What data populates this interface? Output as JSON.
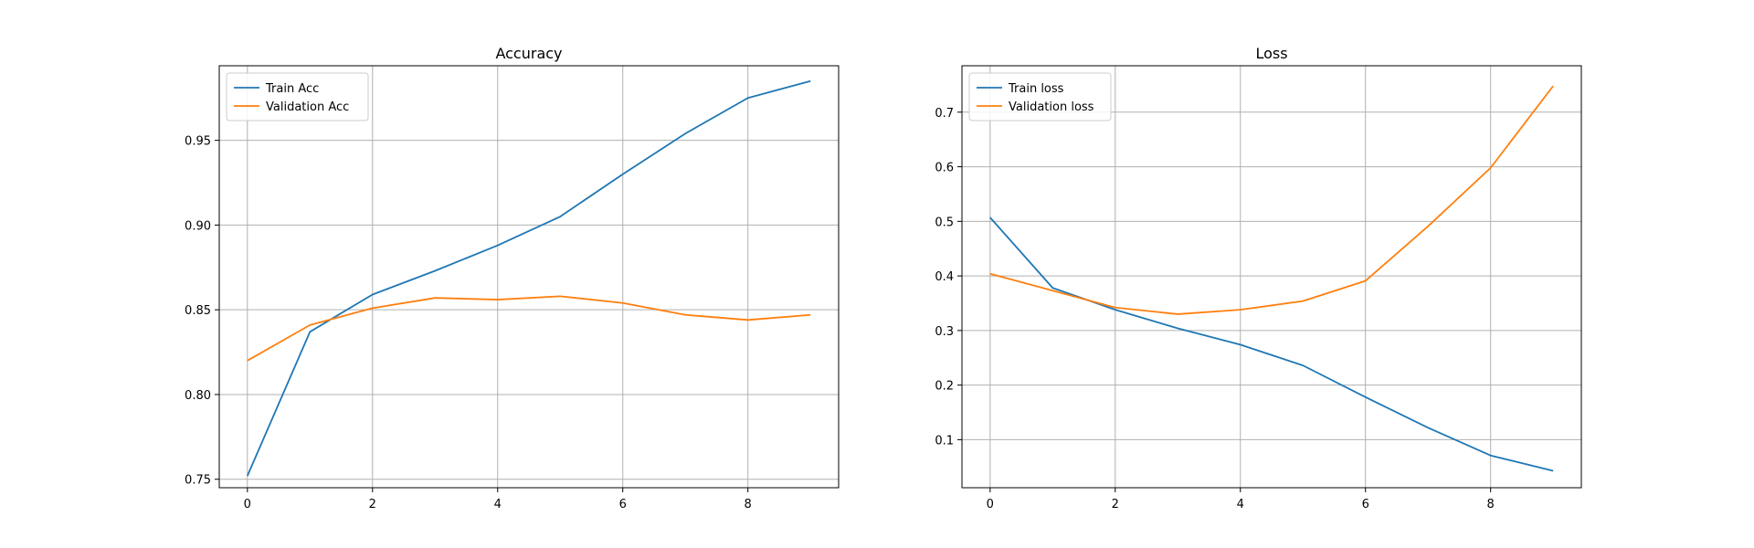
{
  "chart_data": [
    {
      "type": "line",
      "title": "Accuracy",
      "xlabel": "",
      "ylabel": "",
      "x": [
        0,
        1,
        2,
        3,
        4,
        5,
        6,
        7,
        8,
        9
      ],
      "xlim": [
        -0.45,
        9.45
      ],
      "ylim": [
        0.745,
        0.994
      ],
      "xticks": [
        0,
        2,
        4,
        6,
        8
      ],
      "yticks": [
        0.75,
        0.8,
        0.85,
        0.9,
        0.95
      ],
      "ytick_labels": [
        "0.75",
        "0.80",
        "0.85",
        "0.90",
        "0.95"
      ],
      "xtick_labels": [
        "0",
        "2",
        "4",
        "6",
        "8"
      ],
      "grid": true,
      "legend": "top-left",
      "series": [
        {
          "name": "Train Acc",
          "color": "#1f77b4",
          "values": [
            0.752,
            0.837,
            0.859,
            0.873,
            0.888,
            0.905,
            0.93,
            0.954,
            0.975,
            0.985
          ]
        },
        {
          "name": "Validation Acc",
          "color": "#ff7f0e",
          "values": [
            0.82,
            0.841,
            0.851,
            0.857,
            0.856,
            0.858,
            0.854,
            0.847,
            0.844,
            0.847
          ]
        }
      ]
    },
    {
      "type": "line",
      "title": "Loss",
      "xlabel": "",
      "ylabel": "",
      "x": [
        0,
        1,
        2,
        3,
        4,
        5,
        6,
        7,
        8,
        9
      ],
      "xlim": [
        -0.45,
        9.45
      ],
      "ylim": [
        0.012,
        0.785
      ],
      "xticks": [
        0,
        2,
        4,
        6,
        8
      ],
      "yticks": [
        0.1,
        0.2,
        0.3,
        0.4,
        0.5,
        0.6,
        0.7
      ],
      "ytick_labels": [
        "0.1",
        "0.2",
        "0.3",
        "0.4",
        "0.5",
        "0.6",
        "0.7"
      ],
      "xtick_labels": [
        "0",
        "2",
        "4",
        "6",
        "8"
      ],
      "grid": true,
      "legend": "top-left",
      "series": [
        {
          "name": "Train loss",
          "color": "#1f77b4",
          "values": [
            0.507,
            0.378,
            0.338,
            0.304,
            0.274,
            0.236,
            0.178,
            0.122,
            0.071,
            0.043
          ]
        },
        {
          "name": "Validation loss",
          "color": "#ff7f0e",
          "values": [
            0.404,
            0.373,
            0.342,
            0.33,
            0.338,
            0.354,
            0.391,
            0.491,
            0.598,
            0.748
          ]
        }
      ]
    }
  ]
}
